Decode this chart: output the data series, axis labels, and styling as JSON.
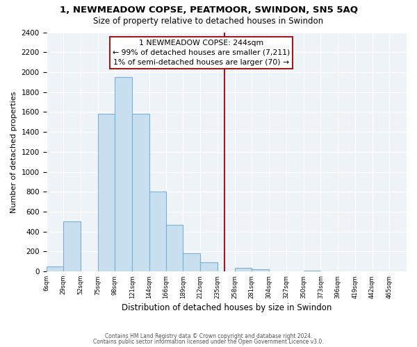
{
  "title": "1, NEWMEADOW COPSE, PEATMOOR, SWINDON, SN5 5AQ",
  "subtitle": "Size of property relative to detached houses in Swindon",
  "xlabel": "Distribution of detached houses by size in Swindon",
  "ylabel": "Number of detached properties",
  "bin_labels": [
    "6sqm",
    "29sqm",
    "52sqm",
    "75sqm",
    "98sqm",
    "121sqm",
    "144sqm",
    "166sqm",
    "189sqm",
    "212sqm",
    "235sqm",
    "258sqm",
    "281sqm",
    "304sqm",
    "327sqm",
    "350sqm",
    "373sqm",
    "396sqm",
    "419sqm",
    "442sqm",
    "465sqm"
  ],
  "bar_heights": [
    50,
    500,
    0,
    1580,
    1950,
    1580,
    800,
    470,
    185,
    90,
    0,
    35,
    20,
    0,
    0,
    10,
    0,
    0,
    0,
    0,
    0
  ],
  "bar_color": "#c8dff0",
  "bar_edge_color": "#7ab0d4",
  "property_line_label": "1 NEWMEADOW COPSE: 244sqm",
  "annotation_smaller": "← 99% of detached houses are smaller (7,211)",
  "annotation_larger": "1% of semi-detached houses are larger (70) →",
  "vline_color": "#9b1c1c",
  "ylim": [
    0,
    2400
  ],
  "yticks": [
    0,
    200,
    400,
    600,
    800,
    1000,
    1200,
    1400,
    1600,
    1800,
    2000,
    2200,
    2400
  ],
  "footer1": "Contains HM Land Registry data © Crown copyright and database right 2024.",
  "footer2": "Contains public sector information licensed under the Open Government Licence v3.0.",
  "bin_edges": [
    6,
    29,
    52,
    75,
    98,
    121,
    144,
    166,
    189,
    212,
    235,
    258,
    281,
    304,
    327,
    350,
    373,
    396,
    419,
    442,
    465,
    488
  ]
}
